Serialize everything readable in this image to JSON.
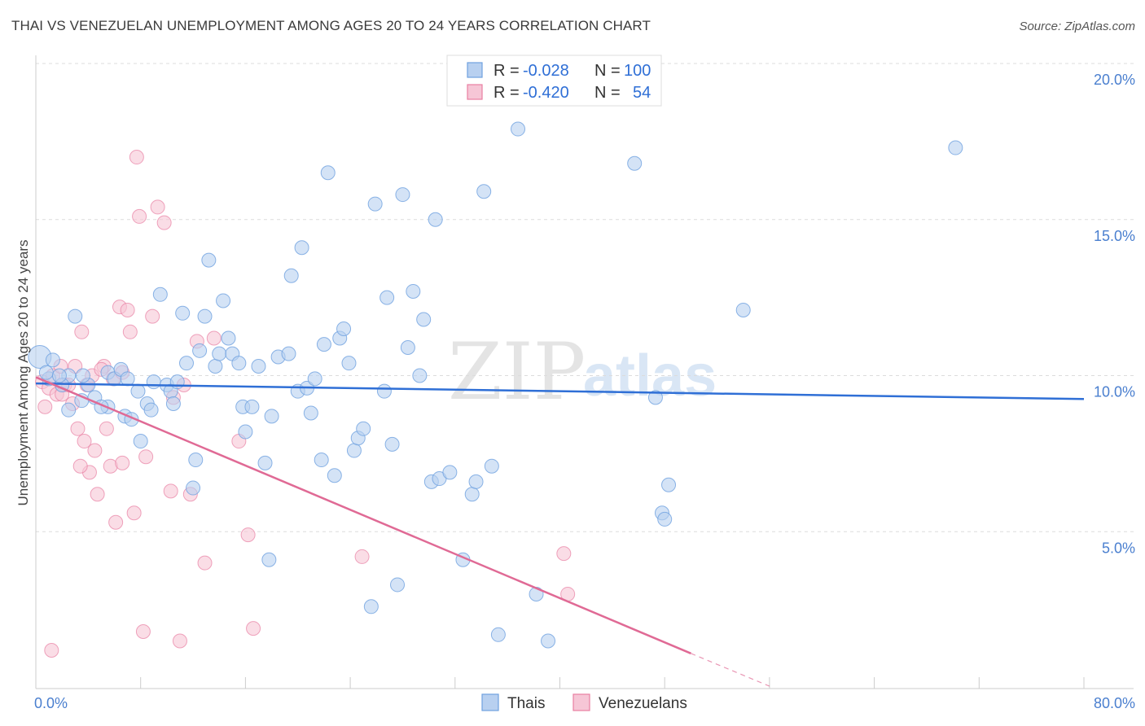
{
  "title": "THAI VS VENEZUELAN UNEMPLOYMENT AMONG AGES 20 TO 24 YEARS CORRELATION CHART",
  "source": "Source: ZipAtlas.com",
  "watermark": {
    "zip": "ZIP",
    "atlas": "atlas"
  },
  "colors": {
    "thai": "#6fa1e0",
    "thai_fill": "#b8d0f0",
    "venezuelan": "#e87fa2",
    "venezuelan_fill": "#f6c6d6",
    "thai_line": "#2f6fd6",
    "venezuelan_line": "#e06a95"
  },
  "legend": {
    "rows": [
      {
        "r_label": "R =",
        "r_value": "-0.028",
        "n_label": "N =",
        "n_value": "100"
      },
      {
        "r_label": "R =",
        "r_value": "-0.420",
        "n_label": "N =",
        "n_value": "54"
      }
    ]
  },
  "bottom_legend": [
    "Thais",
    "Venezuelans"
  ],
  "chart_data": {
    "type": "scatter",
    "title": "THAI VS VENEZUELAN UNEMPLOYMENT AMONG AGES 20 TO 24 YEARS CORRELATION CHART",
    "xlabel": "",
    "ylabel": "Unemployment Among Ages 20 to 24 years",
    "xlim": [
      0,
      80
    ],
    "ylim": [
      0,
      20
    ],
    "x_tick_labels": [
      "0.0%",
      "80.0%"
    ],
    "y_ticks": [
      5,
      10,
      15,
      20
    ],
    "y_tick_labels": [
      "5.0%",
      "10.0%",
      "15.0%",
      "20.0%"
    ],
    "series": [
      {
        "name": "Thais",
        "trend": {
          "x": [
            0,
            80
          ],
          "y": [
            9.75,
            9.25
          ]
        },
        "points": [
          [
            0.3,
            10.6
          ],
          [
            1.3,
            10.5
          ],
          [
            1.0,
            9.9
          ],
          [
            3.0,
            11.9
          ],
          [
            2.5,
            10.0
          ],
          [
            2.0,
            9.7
          ],
          [
            4.0,
            9.7
          ],
          [
            2.5,
            8.9
          ],
          [
            3.5,
            9.2
          ],
          [
            4.5,
            9.3
          ],
          [
            5.5,
            10.1
          ],
          [
            6.0,
            9.9
          ],
          [
            6.5,
            10.2
          ],
          [
            7.0,
            9.9
          ],
          [
            5.5,
            9.0
          ],
          [
            5.0,
            9.0
          ],
          [
            6.8,
            8.7
          ],
          [
            7.3,
            8.6
          ],
          [
            7.8,
            9.5
          ],
          [
            8.5,
            9.1
          ],
          [
            9.0,
            9.8
          ],
          [
            8.8,
            8.9
          ],
          [
            8.0,
            7.9
          ],
          [
            9.5,
            12.6
          ],
          [
            10.0,
            9.7
          ],
          [
            10.3,
            9.5
          ],
          [
            10.8,
            9.8
          ],
          [
            10.5,
            9.1
          ],
          [
            11.2,
            12.0
          ],
          [
            11.5,
            10.4
          ],
          [
            12.0,
            6.4
          ],
          [
            12.2,
            7.3
          ],
          [
            12.5,
            10.8
          ],
          [
            12.9,
            11.9
          ],
          [
            13.2,
            13.7
          ],
          [
            13.7,
            10.3
          ],
          [
            14.0,
            10.7
          ],
          [
            14.3,
            12.4
          ],
          [
            14.7,
            11.2
          ],
          [
            15.0,
            10.7
          ],
          [
            15.5,
            10.4
          ],
          [
            15.8,
            9.0
          ],
          [
            16.0,
            8.2
          ],
          [
            16.5,
            9.0
          ],
          [
            17.0,
            10.3
          ],
          [
            17.5,
            7.2
          ],
          [
            17.8,
            4.1
          ],
          [
            18.0,
            8.7
          ],
          [
            18.5,
            10.6
          ],
          [
            19.3,
            10.7
          ],
          [
            19.5,
            13.2
          ],
          [
            20.0,
            9.5
          ],
          [
            20.3,
            14.1
          ],
          [
            20.7,
            9.6
          ],
          [
            21.0,
            8.8
          ],
          [
            21.3,
            9.9
          ],
          [
            21.8,
            7.3
          ],
          [
            22.0,
            11.0
          ],
          [
            22.3,
            16.5
          ],
          [
            22.8,
            6.8
          ],
          [
            23.2,
            11.2
          ],
          [
            23.5,
            11.5
          ],
          [
            23.9,
            10.4
          ],
          [
            24.3,
            7.6
          ],
          [
            24.6,
            8.0
          ],
          [
            25.0,
            8.3
          ],
          [
            25.6,
            2.6
          ],
          [
            25.9,
            15.5
          ],
          [
            26.6,
            9.5
          ],
          [
            26.8,
            12.5
          ],
          [
            27.2,
            7.8
          ],
          [
            27.6,
            3.3
          ],
          [
            28.0,
            15.8
          ],
          [
            28.4,
            10.9
          ],
          [
            28.8,
            12.7
          ],
          [
            29.3,
            10.0
          ],
          [
            29.6,
            11.8
          ],
          [
            30.2,
            6.6
          ],
          [
            30.5,
            15.0
          ],
          [
            30.8,
            6.7
          ],
          [
            31.6,
            6.9
          ],
          [
            32.6,
            4.1
          ],
          [
            33.3,
            6.2
          ],
          [
            33.6,
            6.6
          ],
          [
            34.2,
            15.9
          ],
          [
            34.8,
            7.1
          ],
          [
            35.3,
            1.7
          ],
          [
            36.8,
            17.9
          ],
          [
            38.2,
            3.0
          ],
          [
            39.1,
            1.5
          ],
          [
            45.7,
            16.8
          ],
          [
            47.3,
            9.3
          ],
          [
            47.8,
            5.6
          ],
          [
            48.0,
            5.4
          ],
          [
            48.3,
            6.5
          ],
          [
            54.0,
            12.1
          ],
          [
            70.2,
            17.3
          ],
          [
            0.8,
            10.1
          ],
          [
            1.8,
            10.0
          ],
          [
            3.6,
            10.0
          ]
        ]
      },
      {
        "name": "Venezuelans",
        "trend": {
          "x": [
            0,
            50
          ],
          "y": [
            9.95,
            1.1
          ]
        },
        "trend_dashed": {
          "x": [
            50,
            56
          ],
          "y": [
            1.1,
            0.05
          ]
        },
        "points": [
          [
            0.5,
            9.8
          ],
          [
            0.7,
            9.0
          ],
          [
            1.0,
            9.6
          ],
          [
            1.3,
            10.0
          ],
          [
            1.6,
            9.4
          ],
          [
            1.9,
            10.3
          ],
          [
            2.2,
            9.7
          ],
          [
            2.5,
            9.7
          ],
          [
            2.8,
            9.1
          ],
          [
            3.0,
            10.3
          ],
          [
            3.2,
            8.3
          ],
          [
            3.5,
            11.4
          ],
          [
            3.7,
            7.9
          ],
          [
            3.9,
            9.7
          ],
          [
            4.1,
            6.9
          ],
          [
            4.3,
            10.0
          ],
          [
            4.5,
            7.6
          ],
          [
            4.7,
            6.2
          ],
          [
            5.2,
            10.3
          ],
          [
            5.4,
            8.3
          ],
          [
            5.7,
            7.1
          ],
          [
            5.9,
            9.9
          ],
          [
            6.1,
            5.3
          ],
          [
            6.4,
            12.2
          ],
          [
            6.6,
            7.2
          ],
          [
            7.0,
            12.1
          ],
          [
            7.2,
            11.4
          ],
          [
            7.5,
            5.6
          ],
          [
            7.7,
            17.0
          ],
          [
            7.9,
            15.1
          ],
          [
            8.2,
            1.8
          ],
          [
            8.4,
            7.4
          ],
          [
            8.9,
            11.9
          ],
          [
            9.3,
            15.4
          ],
          [
            9.8,
            14.9
          ],
          [
            10.3,
            6.3
          ],
          [
            10.5,
            9.3
          ],
          [
            11.0,
            1.5
          ],
          [
            11.3,
            9.7
          ],
          [
            11.8,
            6.2
          ],
          [
            12.3,
            11.1
          ],
          [
            12.9,
            4.0
          ],
          [
            13.6,
            11.2
          ],
          [
            15.5,
            7.9
          ],
          [
            16.2,
            4.9
          ],
          [
            16.6,
            1.9
          ],
          [
            24.9,
            4.2
          ],
          [
            40.3,
            4.3
          ],
          [
            40.6,
            3.0
          ],
          [
            2.0,
            9.4
          ],
          [
            3.4,
            7.1
          ],
          [
            5.0,
            10.2
          ],
          [
            6.6,
            10.1
          ],
          [
            1.2,
            1.2
          ]
        ]
      }
    ]
  }
}
